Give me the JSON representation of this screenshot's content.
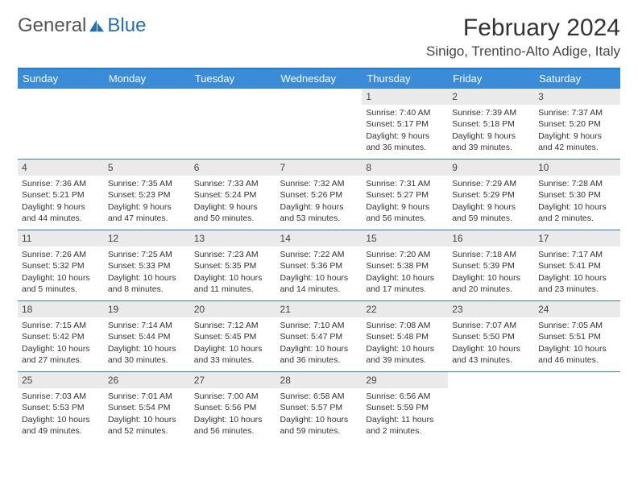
{
  "brand": {
    "part1": "General",
    "part2": "Blue"
  },
  "colors": {
    "header_bg": "#3a8bd8",
    "border": "#2f7bbf",
    "daynum_bg": "#eaeaea",
    "text": "#333333",
    "logo_gray": "#555555",
    "logo_blue": "#1f6fb2"
  },
  "title": "February 2024",
  "location": "Sinigo, Trentino-Alto Adige, Italy",
  "weekdays": [
    "Sunday",
    "Monday",
    "Tuesday",
    "Wednesday",
    "Thursday",
    "Friday",
    "Saturday"
  ],
  "layout": {
    "lead_blanks": 4,
    "trail_blanks": 2
  },
  "days": [
    {
      "n": "1",
      "sunrise": "7:40 AM",
      "sunset": "5:17 PM",
      "dayh": "9",
      "daym": "36"
    },
    {
      "n": "2",
      "sunrise": "7:39 AM",
      "sunset": "5:18 PM",
      "dayh": "9",
      "daym": "39"
    },
    {
      "n": "3",
      "sunrise": "7:37 AM",
      "sunset": "5:20 PM",
      "dayh": "9",
      "daym": "42"
    },
    {
      "n": "4",
      "sunrise": "7:36 AM",
      "sunset": "5:21 PM",
      "dayh": "9",
      "daym": "44"
    },
    {
      "n": "5",
      "sunrise": "7:35 AM",
      "sunset": "5:23 PM",
      "dayh": "9",
      "daym": "47"
    },
    {
      "n": "6",
      "sunrise": "7:33 AM",
      "sunset": "5:24 PM",
      "dayh": "9",
      "daym": "50"
    },
    {
      "n": "7",
      "sunrise": "7:32 AM",
      "sunset": "5:26 PM",
      "dayh": "9",
      "daym": "53"
    },
    {
      "n": "8",
      "sunrise": "7:31 AM",
      "sunset": "5:27 PM",
      "dayh": "9",
      "daym": "56"
    },
    {
      "n": "9",
      "sunrise": "7:29 AM",
      "sunset": "5:29 PM",
      "dayh": "9",
      "daym": "59"
    },
    {
      "n": "10",
      "sunrise": "7:28 AM",
      "sunset": "5:30 PM",
      "dayh": "10",
      "daym": "2"
    },
    {
      "n": "11",
      "sunrise": "7:26 AM",
      "sunset": "5:32 PM",
      "dayh": "10",
      "daym": "5"
    },
    {
      "n": "12",
      "sunrise": "7:25 AM",
      "sunset": "5:33 PM",
      "dayh": "10",
      "daym": "8"
    },
    {
      "n": "13",
      "sunrise": "7:23 AM",
      "sunset": "5:35 PM",
      "dayh": "10",
      "daym": "11"
    },
    {
      "n": "14",
      "sunrise": "7:22 AM",
      "sunset": "5:36 PM",
      "dayh": "10",
      "daym": "14"
    },
    {
      "n": "15",
      "sunrise": "7:20 AM",
      "sunset": "5:38 PM",
      "dayh": "10",
      "daym": "17"
    },
    {
      "n": "16",
      "sunrise": "7:18 AM",
      "sunset": "5:39 PM",
      "dayh": "10",
      "daym": "20"
    },
    {
      "n": "17",
      "sunrise": "7:17 AM",
      "sunset": "5:41 PM",
      "dayh": "10",
      "daym": "23"
    },
    {
      "n": "18",
      "sunrise": "7:15 AM",
      "sunset": "5:42 PM",
      "dayh": "10",
      "daym": "27"
    },
    {
      "n": "19",
      "sunrise": "7:14 AM",
      "sunset": "5:44 PM",
      "dayh": "10",
      "daym": "30"
    },
    {
      "n": "20",
      "sunrise": "7:12 AM",
      "sunset": "5:45 PM",
      "dayh": "10",
      "daym": "33"
    },
    {
      "n": "21",
      "sunrise": "7:10 AM",
      "sunset": "5:47 PM",
      "dayh": "10",
      "daym": "36"
    },
    {
      "n": "22",
      "sunrise": "7:08 AM",
      "sunset": "5:48 PM",
      "dayh": "10",
      "daym": "39"
    },
    {
      "n": "23",
      "sunrise": "7:07 AM",
      "sunset": "5:50 PM",
      "dayh": "10",
      "daym": "43"
    },
    {
      "n": "24",
      "sunrise": "7:05 AM",
      "sunset": "5:51 PM",
      "dayh": "10",
      "daym": "46"
    },
    {
      "n": "25",
      "sunrise": "7:03 AM",
      "sunset": "5:53 PM",
      "dayh": "10",
      "daym": "49"
    },
    {
      "n": "26",
      "sunrise": "7:01 AM",
      "sunset": "5:54 PM",
      "dayh": "10",
      "daym": "52"
    },
    {
      "n": "27",
      "sunrise": "7:00 AM",
      "sunset": "5:56 PM",
      "dayh": "10",
      "daym": "56"
    },
    {
      "n": "28",
      "sunrise": "6:58 AM",
      "sunset": "5:57 PM",
      "dayh": "10",
      "daym": "59"
    },
    {
      "n": "29",
      "sunrise": "6:56 AM",
      "sunset": "5:59 PM",
      "dayh": "11",
      "daym": "2"
    }
  ],
  "labels": {
    "sunrise": "Sunrise:",
    "sunset": "Sunset:",
    "daylight_prefix": "Daylight:",
    "hours_word": "hours",
    "and_word": "and",
    "minutes_word": "minutes."
  }
}
